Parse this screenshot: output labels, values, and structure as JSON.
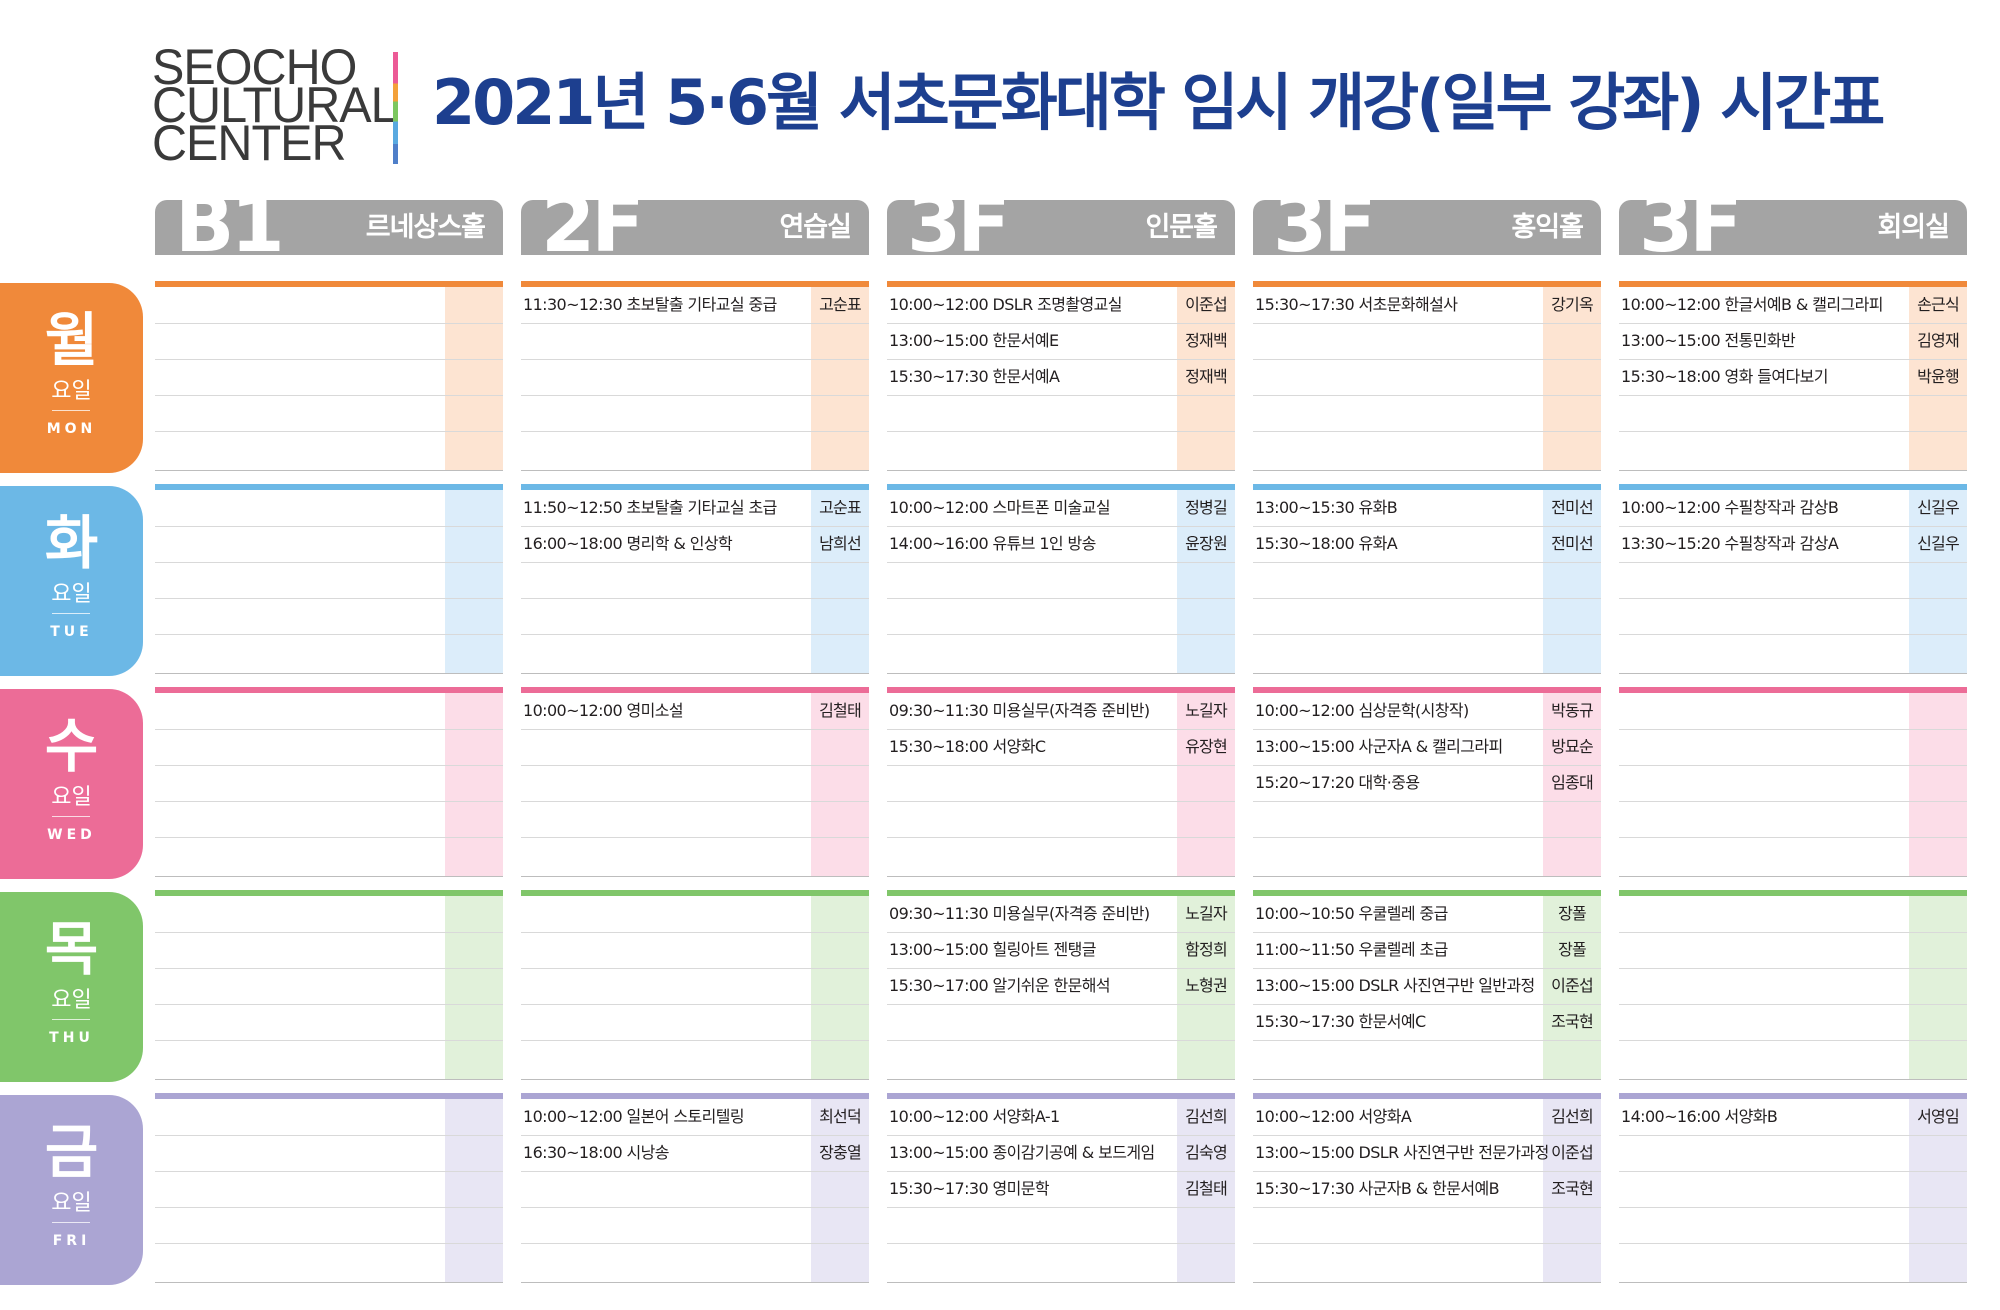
{
  "logo": {
    "lines": [
      "SEOCHO",
      "CULTURAL",
      "CENTER"
    ]
  },
  "title": "2021년 5·6월 서초문화대학 임시 개강(일부 강좌) 시간표",
  "columns": [
    {
      "floor": "B1",
      "room": "르네상스홀"
    },
    {
      "floor": "2F",
      "room": "연습실"
    },
    {
      "floor": "3F",
      "room": "인문홀"
    },
    {
      "floor": "3F",
      "room": "홍익홀"
    },
    {
      "floor": "3F",
      "room": "회의실"
    }
  ],
  "days": [
    {
      "char": "월",
      "sub": "요일",
      "eng": "MON",
      "color": "#f0893a",
      "tint": "#fde4d2"
    },
    {
      "char": "화",
      "sub": "요일",
      "eng": "TUE",
      "color": "#6cb8e6",
      "tint": "#dcedfa"
    },
    {
      "char": "수",
      "sub": "요일",
      "eng": "WED",
      "color": "#ec6c97",
      "tint": "#fcdde8"
    },
    {
      "char": "목",
      "sub": "요일",
      "eng": "THU",
      "color": "#80c66a",
      "tint": "#e1f1da"
    },
    {
      "char": "금",
      "sub": "요일",
      "eng": "FRI",
      "color": "#aba5d3",
      "tint": "#e8e6f4"
    }
  ],
  "schedule": [
    [
      [],
      [
        {
          "c": "11:30~12:30 초보탈출 기타교실 중급",
          "t": "고순표"
        }
      ],
      [
        {
          "c": "10:00~12:00 DSLR 조명촬영교실",
          "t": "이준섭"
        },
        {
          "c": "13:00~15:00 한문서예E",
          "t": "정재백"
        },
        {
          "c": "15:30~17:30 한문서예A",
          "t": "정재백"
        }
      ],
      [
        {
          "c": "15:30~17:30 서초문화해설사",
          "t": "강기옥"
        }
      ],
      [
        {
          "c": "10:00~12:00 한글서예B & 캘리그라피",
          "t": "손근식"
        },
        {
          "c": "13:00~15:00 전통민화반",
          "t": "김영재"
        },
        {
          "c": "15:30~18:00 영화 들여다보기",
          "t": "박윤행"
        }
      ]
    ],
    [
      [],
      [
        {
          "c": "11:50~12:50 초보탈출 기타교실 초급",
          "t": "고순표"
        },
        {
          "c": "16:00~18:00 명리학 & 인상학",
          "t": "남희선"
        }
      ],
      [
        {
          "c": "10:00~12:00 스마트폰 미술교실",
          "t": "정병길"
        },
        {
          "c": "14:00~16:00 유튜브 1인 방송",
          "t": "윤장원"
        }
      ],
      [
        {
          "c": "13:00~15:30 유화B",
          "t": "전미선"
        },
        {
          "c": "15:30~18:00 유화A",
          "t": "전미선"
        }
      ],
      [
        {
          "c": "10:00~12:00 수필창작과 감상B",
          "t": "신길우"
        },
        {
          "c": "13:30~15:20 수필창작과 감상A",
          "t": "신길우"
        }
      ]
    ],
    [
      [],
      [
        {
          "c": "10:00~12:00 영미소설",
          "t": "김철태"
        }
      ],
      [
        {
          "c": "09:30~11:30 미용실무(자격증 준비반)",
          "t": "노길자"
        },
        {
          "c": "15:30~18:00 서양화C",
          "t": "유장현"
        }
      ],
      [
        {
          "c": "10:00~12:00 심상문학(시창작)",
          "t": "박동규"
        },
        {
          "c": "13:00~15:00 사군자A & 캘리그라피",
          "t": "방묘순"
        },
        {
          "c": "15:20~17:20 대학·중용",
          "t": "임종대"
        }
      ],
      []
    ],
    [
      [],
      [],
      [
        {
          "c": "09:30~11:30 미용실무(자격증 준비반)",
          "t": "노길자"
        },
        {
          "c": "13:00~15:00 힐링아트 젠탱글",
          "t": "함정희"
        },
        {
          "c": "15:30~17:00 알기쉬운 한문해석",
          "t": "노형권"
        }
      ],
      [
        {
          "c": "10:00~10:50 우쿨렐레 중급",
          "t": "장폴"
        },
        {
          "c": "11:00~11:50 우쿨렐레 초급",
          "t": "장폴"
        },
        {
          "c": "13:00~15:00 DSLR 사진연구반 일반과정",
          "t": "이준섭"
        },
        {
          "c": "15:30~17:30 한문서예C",
          "t": "조국현"
        }
      ],
      []
    ],
    [
      [],
      [
        {
          "c": "10:00~12:00 일본어 스토리텔링",
          "t": "최선덕"
        },
        {
          "c": "16:30~18:00 시낭송",
          "t": "장충열"
        }
      ],
      [
        {
          "c": "10:00~12:00 서양화A-1",
          "t": "김선희"
        },
        {
          "c": "13:00~15:00 종이감기공예 & 보드게임",
          "t": "김숙영"
        },
        {
          "c": "15:30~17:30 영미문학",
          "t": "김철태"
        }
      ],
      [
        {
          "c": "10:00~12:00 서양화A",
          "t": "김선희"
        },
        {
          "c": "13:00~15:00 DSLR 사진연구반 전문가과정",
          "t": "이준섭"
        },
        {
          "c": "15:30~17:30 사군자B & 한문서예B",
          "t": "조국현"
        }
      ],
      [
        {
          "c": "14:00~16:00 서양화B",
          "t": "서영임"
        }
      ]
    ]
  ]
}
